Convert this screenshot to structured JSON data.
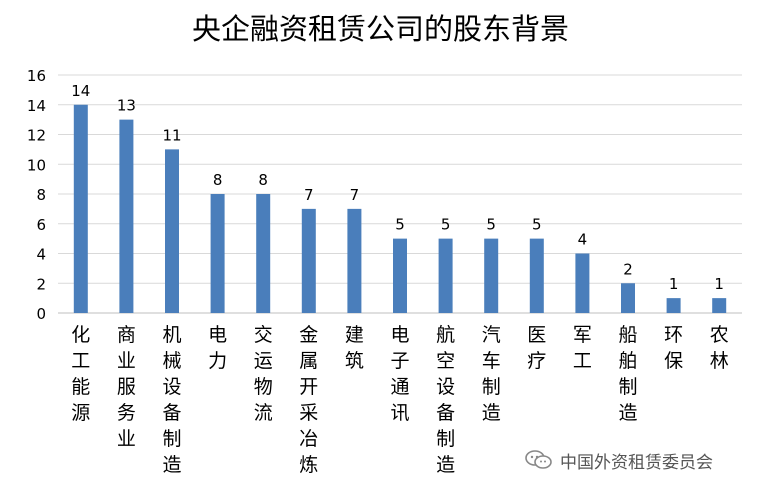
{
  "chart_data": {
    "type": "bar",
    "title": "央企融资租赁公司的股东背景",
    "xlabel": "",
    "ylabel": "",
    "ylim": [
      0,
      16
    ],
    "yticks": [
      0,
      2,
      4,
      6,
      8,
      10,
      12,
      14,
      16
    ],
    "grid": true,
    "legend": "none",
    "bar_color": "#4a7ebb",
    "categories": [
      "化工能源",
      "商业服务业",
      "机械设备制造",
      "电力",
      "交运物流",
      "金属开采冶炼",
      "建筑",
      "电子通讯",
      "航空设备制造",
      "汽车制造",
      "医疗",
      "军工",
      "船舶制造",
      "环保",
      "农林"
    ],
    "values": [
      14,
      13,
      11,
      8,
      8,
      7,
      7,
      5,
      5,
      5,
      5,
      4,
      2,
      1,
      1
    ],
    "data_labels": true
  },
  "watermark": {
    "text": "中国外资租赁委员会",
    "icon": "wechat-icon"
  }
}
